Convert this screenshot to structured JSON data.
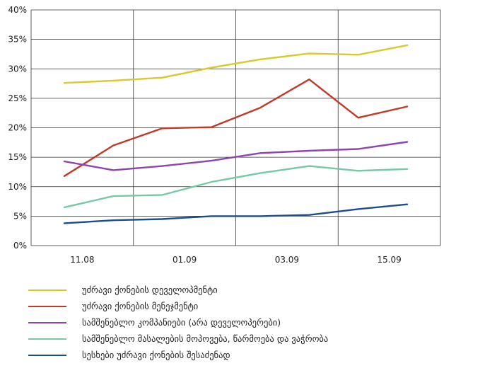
{
  "chart_data": {
    "type": "line",
    "x_labels": [
      "11.08",
      "01.09",
      "03.09",
      "15.09"
    ],
    "y_ticks": [
      "0%",
      "5%",
      "10%",
      "15%",
      "20%",
      "25%",
      "30%",
      "35%",
      "40%"
    ],
    "ylim": [
      0,
      40
    ],
    "grid": true,
    "legend_position": "bottom",
    "series": [
      {
        "name": "უძრავი ქონების დეველოპმენტი",
        "color": "#d9c92a",
        "values": [
          27.6,
          28.0,
          28.5,
          30.2,
          31.6,
          32.6,
          32.4,
          34.0
        ]
      },
      {
        "name": "უძრავი ქონების მენეჯმენტი",
        "color": "#c0392b",
        "values": [
          11.8,
          17.0,
          19.9,
          20.1,
          23.4,
          28.2,
          21.7,
          23.6
        ]
      },
      {
        "name": "სამშენებლო კომპანიები (არა დეველოპერები)",
        "color": "#8e44ad",
        "values": [
          14.3,
          12.8,
          13.5,
          14.4,
          15.7,
          16.1,
          16.4,
          17.6
        ]
      },
      {
        "name": "სამშენებლო მასალების მოპოვება, წარმოება და ვაჭრობა",
        "color": "#76c9a5",
        "values": [
          6.5,
          8.4,
          8.6,
          10.8,
          12.3,
          13.5,
          12.7,
          13.0
        ]
      },
      {
        "name": "სესხები უძრავი ქონების შესაძენად",
        "color": "#1d4e89",
        "values": [
          3.8,
          4.3,
          4.5,
          5.0,
          5.0,
          5.2,
          6.2,
          7.0
        ]
      }
    ]
  }
}
